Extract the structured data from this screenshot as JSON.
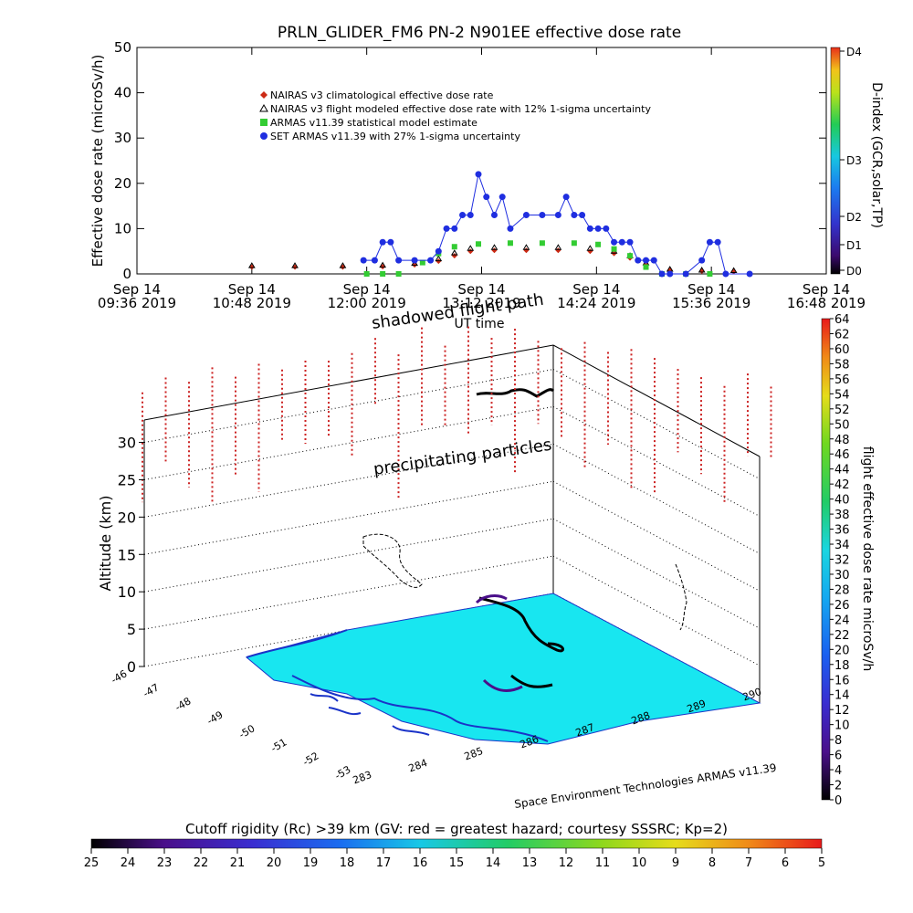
{
  "chart_data": [
    {
      "type": "scatter",
      "title": "PRLN_GLIDER_FM6 PN-2 N901EE effective dose rate",
      "ylabel": "Effective dose rate (microSv/h)",
      "xlabel": "UT time",
      "ylim": [
        0,
        50
      ],
      "yticks": [
        0,
        10,
        20,
        30,
        40,
        50
      ],
      "xlim": [
        "09:36",
        "16:48"
      ],
      "xticks": [
        {
          "top": "Sep 14",
          "bottom": "09:36 2019",
          "t": "09:36"
        },
        {
          "top": "Sep 14",
          "bottom": "10:48 2019",
          "t": "10:48"
        },
        {
          "top": "Sep 14",
          "bottom": "12:00 2019",
          "t": "12:00"
        },
        {
          "top": "Sep 14",
          "bottom": "13:12 2019",
          "t": "13:12"
        },
        {
          "top": "Sep 14",
          "bottom": "14:24 2019",
          "t": "14:24"
        },
        {
          "top": "Sep 14",
          "bottom": "15:36 2019",
          "t": "15:36"
        },
        {
          "top": "Sep 14",
          "bottom": "16:48 2019",
          "t": "16:48"
        }
      ],
      "legend_placement": "top-left",
      "series": [
        {
          "name": "NAIRAS v3 climatological effective dose rate",
          "marker": "diamond",
          "color": "#cc2a14",
          "points": [
            [
              "10:48",
              1.5
            ],
            [
              "11:15",
              1.5
            ],
            [
              "11:45",
              1.5
            ],
            [
              "12:10",
              1.6
            ],
            [
              "12:30",
              2.0
            ],
            [
              "12:45",
              2.8
            ],
            [
              "12:55",
              4.0
            ],
            [
              "13:05",
              5.0
            ],
            [
              "13:20",
              5.2
            ],
            [
              "13:40",
              5.2
            ],
            [
              "14:00",
              5.2
            ],
            [
              "14:20",
              5.0
            ],
            [
              "14:35",
              4.5
            ],
            [
              "14:45",
              3.5
            ],
            [
              "14:55",
              2.0
            ],
            [
              "15:10",
              0.8
            ],
            [
              "15:30",
              0.6
            ],
            [
              "15:50",
              0.5
            ]
          ]
        },
        {
          "name": "NAIRAS v3 flight modeled effective dose rate with 12% 1-sigma uncertainty",
          "marker": "triangle",
          "color": "#000000",
          "points": [
            [
              "10:48",
              1.8
            ],
            [
              "11:15",
              1.8
            ],
            [
              "11:45",
              1.8
            ],
            [
              "12:10",
              1.9
            ],
            [
              "12:30",
              2.3
            ],
            [
              "12:45",
              3.3
            ],
            [
              "12:55",
              4.6
            ],
            [
              "13:05",
              5.6
            ],
            [
              "13:20",
              5.8
            ],
            [
              "13:40",
              5.8
            ],
            [
              "14:00",
              5.8
            ],
            [
              "14:20",
              5.6
            ],
            [
              "14:35",
              5.0
            ],
            [
              "14:45",
              4.0
            ],
            [
              "14:55",
              2.4
            ],
            [
              "15:10",
              1.0
            ],
            [
              "15:30",
              0.8
            ],
            [
              "15:50",
              0.7
            ]
          ]
        },
        {
          "name": "ARMAS v11.39 statistical model estimate",
          "marker": "star",
          "color": "#33cc33",
          "points": [
            [
              "12:00",
              0
            ],
            [
              "12:10",
              0
            ],
            [
              "12:20",
              0
            ],
            [
              "12:35",
              2.5
            ],
            [
              "12:45",
              4.5
            ],
            [
              "12:55",
              6.0
            ],
            [
              "13:10",
              6.6
            ],
            [
              "13:30",
              6.8
            ],
            [
              "13:50",
              6.8
            ],
            [
              "14:10",
              6.8
            ],
            [
              "14:25",
              6.5
            ],
            [
              "14:35",
              5.5
            ],
            [
              "14:45",
              4.0
            ],
            [
              "14:55",
              1.5
            ],
            [
              "15:05",
              0
            ],
            [
              "15:20",
              0
            ],
            [
              "15:35",
              0
            ]
          ]
        },
        {
          "name": "SET ARMAS v11.39 with 27% 1-sigma uncertainty",
          "marker": "dot",
          "color": "#1f2ee0",
          "points": [
            [
              "11:58",
              3
            ],
            [
              "12:05",
              3
            ],
            [
              "12:10",
              7
            ],
            [
              "12:15",
              7
            ],
            [
              "12:20",
              3
            ],
            [
              "12:30",
              3
            ],
            [
              "12:40",
              3
            ],
            [
              "12:45",
              5
            ],
            [
              "12:50",
              10
            ],
            [
              "12:55",
              10
            ],
            [
              "13:00",
              13
            ],
            [
              "13:05",
              13
            ],
            [
              "13:10",
              22
            ],
            [
              "13:15",
              17
            ],
            [
              "13:20",
              13
            ],
            [
              "13:25",
              17
            ],
            [
              "13:30",
              10
            ],
            [
              "13:40",
              13
            ],
            [
              "13:50",
              13
            ],
            [
              "14:00",
              13
            ],
            [
              "14:05",
              17
            ],
            [
              "14:10",
              13
            ],
            [
              "14:15",
              13
            ],
            [
              "14:20",
              10
            ],
            [
              "14:25",
              10
            ],
            [
              "14:30",
              10
            ],
            [
              "14:35",
              7
            ],
            [
              "14:40",
              7
            ],
            [
              "14:45",
              7
            ],
            [
              "14:50",
              3
            ],
            [
              "14:55",
              3
            ],
            [
              "15:00",
              3
            ],
            [
              "15:05",
              0
            ],
            [
              "15:10",
              0
            ],
            [
              "15:20",
              0
            ],
            [
              "15:30",
              3
            ],
            [
              "15:35",
              7
            ],
            [
              "15:40",
              7
            ],
            [
              "15:45",
              0
            ],
            [
              "16:00",
              0
            ]
          ]
        }
      ],
      "d_index": {
        "label": "D-index (GCR,solar,TP)",
        "levels": [
          "D0",
          "D1",
          "D2",
          "D3",
          "D4"
        ]
      }
    },
    {
      "type": "scatter3d",
      "zlabel": "Altitude (km)",
      "zlim": [
        0,
        35
      ],
      "zticks": [
        0,
        5,
        10,
        15,
        20,
        25,
        30
      ],
      "lat_ticks": [
        "-46",
        "-47",
        "-48",
        "-49",
        "-50",
        "-51",
        "-52",
        "-53"
      ],
      "lon_ticks": [
        "283",
        "284",
        "285",
        "286",
        "287",
        "288",
        "289",
        "290"
      ],
      "annotations": [
        "shadowed flight path",
        "precipitating particles"
      ],
      "colorbar": {
        "label": "flight effective dose rate microSv/h",
        "min": 0,
        "max": 64,
        "step": 2
      }
    }
  ],
  "footer": {
    "credit": "Space Environment Technologies ARMAS v11.39",
    "rigidity_label": "Cutoff rigidity (Rc) >39 km (GV: red = greatest hazard; courtesy SSSRC; Kp=2)",
    "rigidity_ticks": [
      "25",
      "24",
      "23",
      "22",
      "21",
      "20",
      "19",
      "18",
      "17",
      "16",
      "15",
      "14",
      "13",
      "12",
      "11",
      "10",
      "9",
      "8",
      "7",
      "6",
      "5"
    ]
  }
}
